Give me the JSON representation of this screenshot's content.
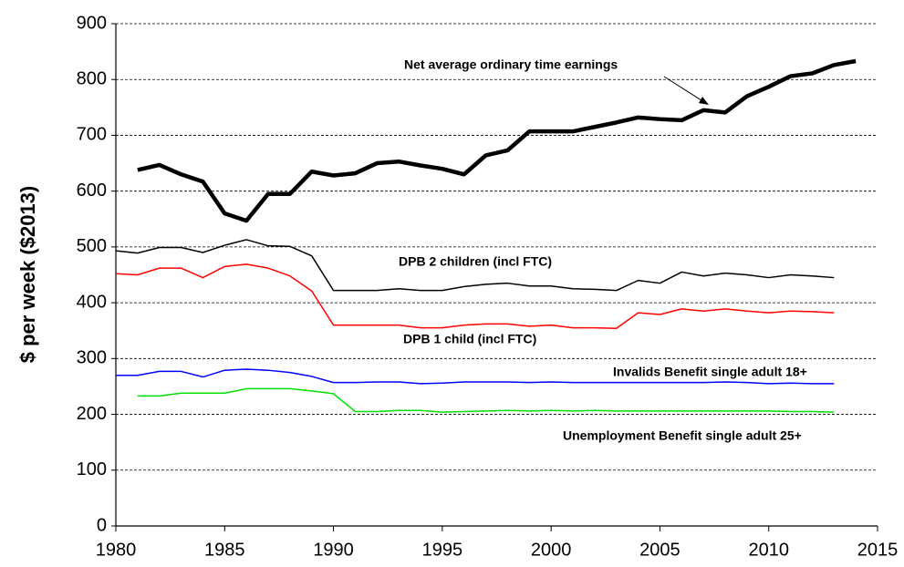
{
  "chart_data": {
    "type": "line",
    "y_label": "$ per week ($2013)",
    "x": [
      1980,
      1981,
      1982,
      1983,
      1984,
      1985,
      1986,
      1987,
      1988,
      1989,
      1990,
      1991,
      1992,
      1993,
      1994,
      1995,
      1996,
      1997,
      1998,
      1999,
      2000,
      2001,
      2002,
      2003,
      2004,
      2005,
      2006,
      2007,
      2008,
      2009,
      2010,
      2011,
      2012,
      2013,
      2014
    ],
    "xlim": [
      1980,
      2015
    ],
    "xticks": [
      1980,
      1985,
      1990,
      1995,
      2000,
      2005,
      2010,
      2015
    ],
    "ylim": [
      0,
      900
    ],
    "yticks": [
      0,
      100,
      200,
      300,
      400,
      500,
      600,
      700,
      800,
      900
    ],
    "grid": true,
    "series": [
      {
        "name": "Net average ordinary time earnings",
        "color": "#000000",
        "width": 4.5,
        "values": [
          null,
          638,
          647,
          630,
          617,
          560,
          547,
          595,
          595,
          635,
          628,
          632,
          650,
          653,
          646,
          640,
          630,
          664,
          673,
          707,
          707,
          707,
          715,
          723,
          732,
          729,
          727,
          745,
          741,
          770,
          787,
          806,
          811,
          826,
          833
        ]
      },
      {
        "name": "DPB 2 children (incl FTC)",
        "color": "#000000",
        "width": 1.5,
        "values": [
          493,
          489,
          499,
          499,
          490,
          503,
          513,
          502,
          501,
          484,
          422,
          422,
          422,
          425,
          422,
          422,
          429,
          433,
          435,
          430,
          430,
          425,
          424,
          422,
          440,
          435,
          455,
          448,
          453,
          450,
          445,
          450,
          448,
          445,
          null
        ]
      },
      {
        "name": "DPB 1 child (incl FTC)",
        "color": "#ff0000",
        "width": 1.5,
        "values": [
          452,
          450,
          462,
          462,
          445,
          465,
          469,
          462,
          448,
          421,
          360,
          360,
          360,
          360,
          355,
          355,
          360,
          362,
          362,
          358,
          360,
          355,
          355,
          354,
          382,
          379,
          389,
          385,
          389,
          385,
          382,
          385,
          384,
          382,
          null
        ]
      },
      {
        "name": "Invalids Benefit single adult 18+",
        "color": "#0000ff",
        "width": 1.5,
        "values": [
          270,
          270,
          277,
          277,
          267,
          279,
          281,
          279,
          275,
          268,
          257,
          257,
          258,
          258,
          255,
          256,
          258,
          258,
          258,
          257,
          258,
          257,
          257,
          257,
          257,
          257,
          257,
          257,
          258,
          257,
          255,
          256,
          255,
          255,
          null
        ]
      },
      {
        "name": "Unemployment Benefit single adult 25+",
        "color": "#00e000",
        "width": 1.5,
        "values": [
          null,
          233,
          233,
          238,
          238,
          238,
          246,
          246,
          246,
          242,
          237,
          205,
          205,
          207,
          207,
          204,
          205,
          206,
          207,
          206,
          207,
          206,
          207,
          206,
          206,
          206,
          206,
          206,
          206,
          206,
          206,
          205,
          205,
          204,
          null
        ]
      }
    ]
  }
}
